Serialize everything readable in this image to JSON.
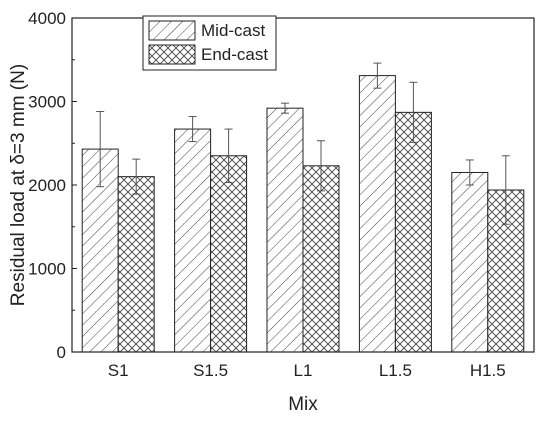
{
  "chart_data": {
    "type": "bar",
    "categories": [
      "S1",
      "S1.5",
      "L1",
      "L1.5",
      "H1.5"
    ],
    "series": [
      {
        "name": "Mid-cast",
        "values": [
          2430,
          2670,
          2920,
          3310,
          2150
        ],
        "error": [
          450,
          150,
          60,
          150,
          150
        ],
        "pattern": "diagonal-hatch"
      },
      {
        "name": "End-cast",
        "values": [
          2100,
          2350,
          2230,
          2870,
          1940
        ],
        "error": [
          210,
          320,
          300,
          360,
          410
        ],
        "pattern": "cross-hatch"
      }
    ],
    "xlabel": "Mix",
    "ylabel": "Residual load at δ=3 mm (N)",
    "ylim": [
      0,
      4000
    ],
    "yticks": [
      0,
      1000,
      2000,
      3000,
      4000
    ],
    "legend_position": "top-left",
    "grid": false
  }
}
